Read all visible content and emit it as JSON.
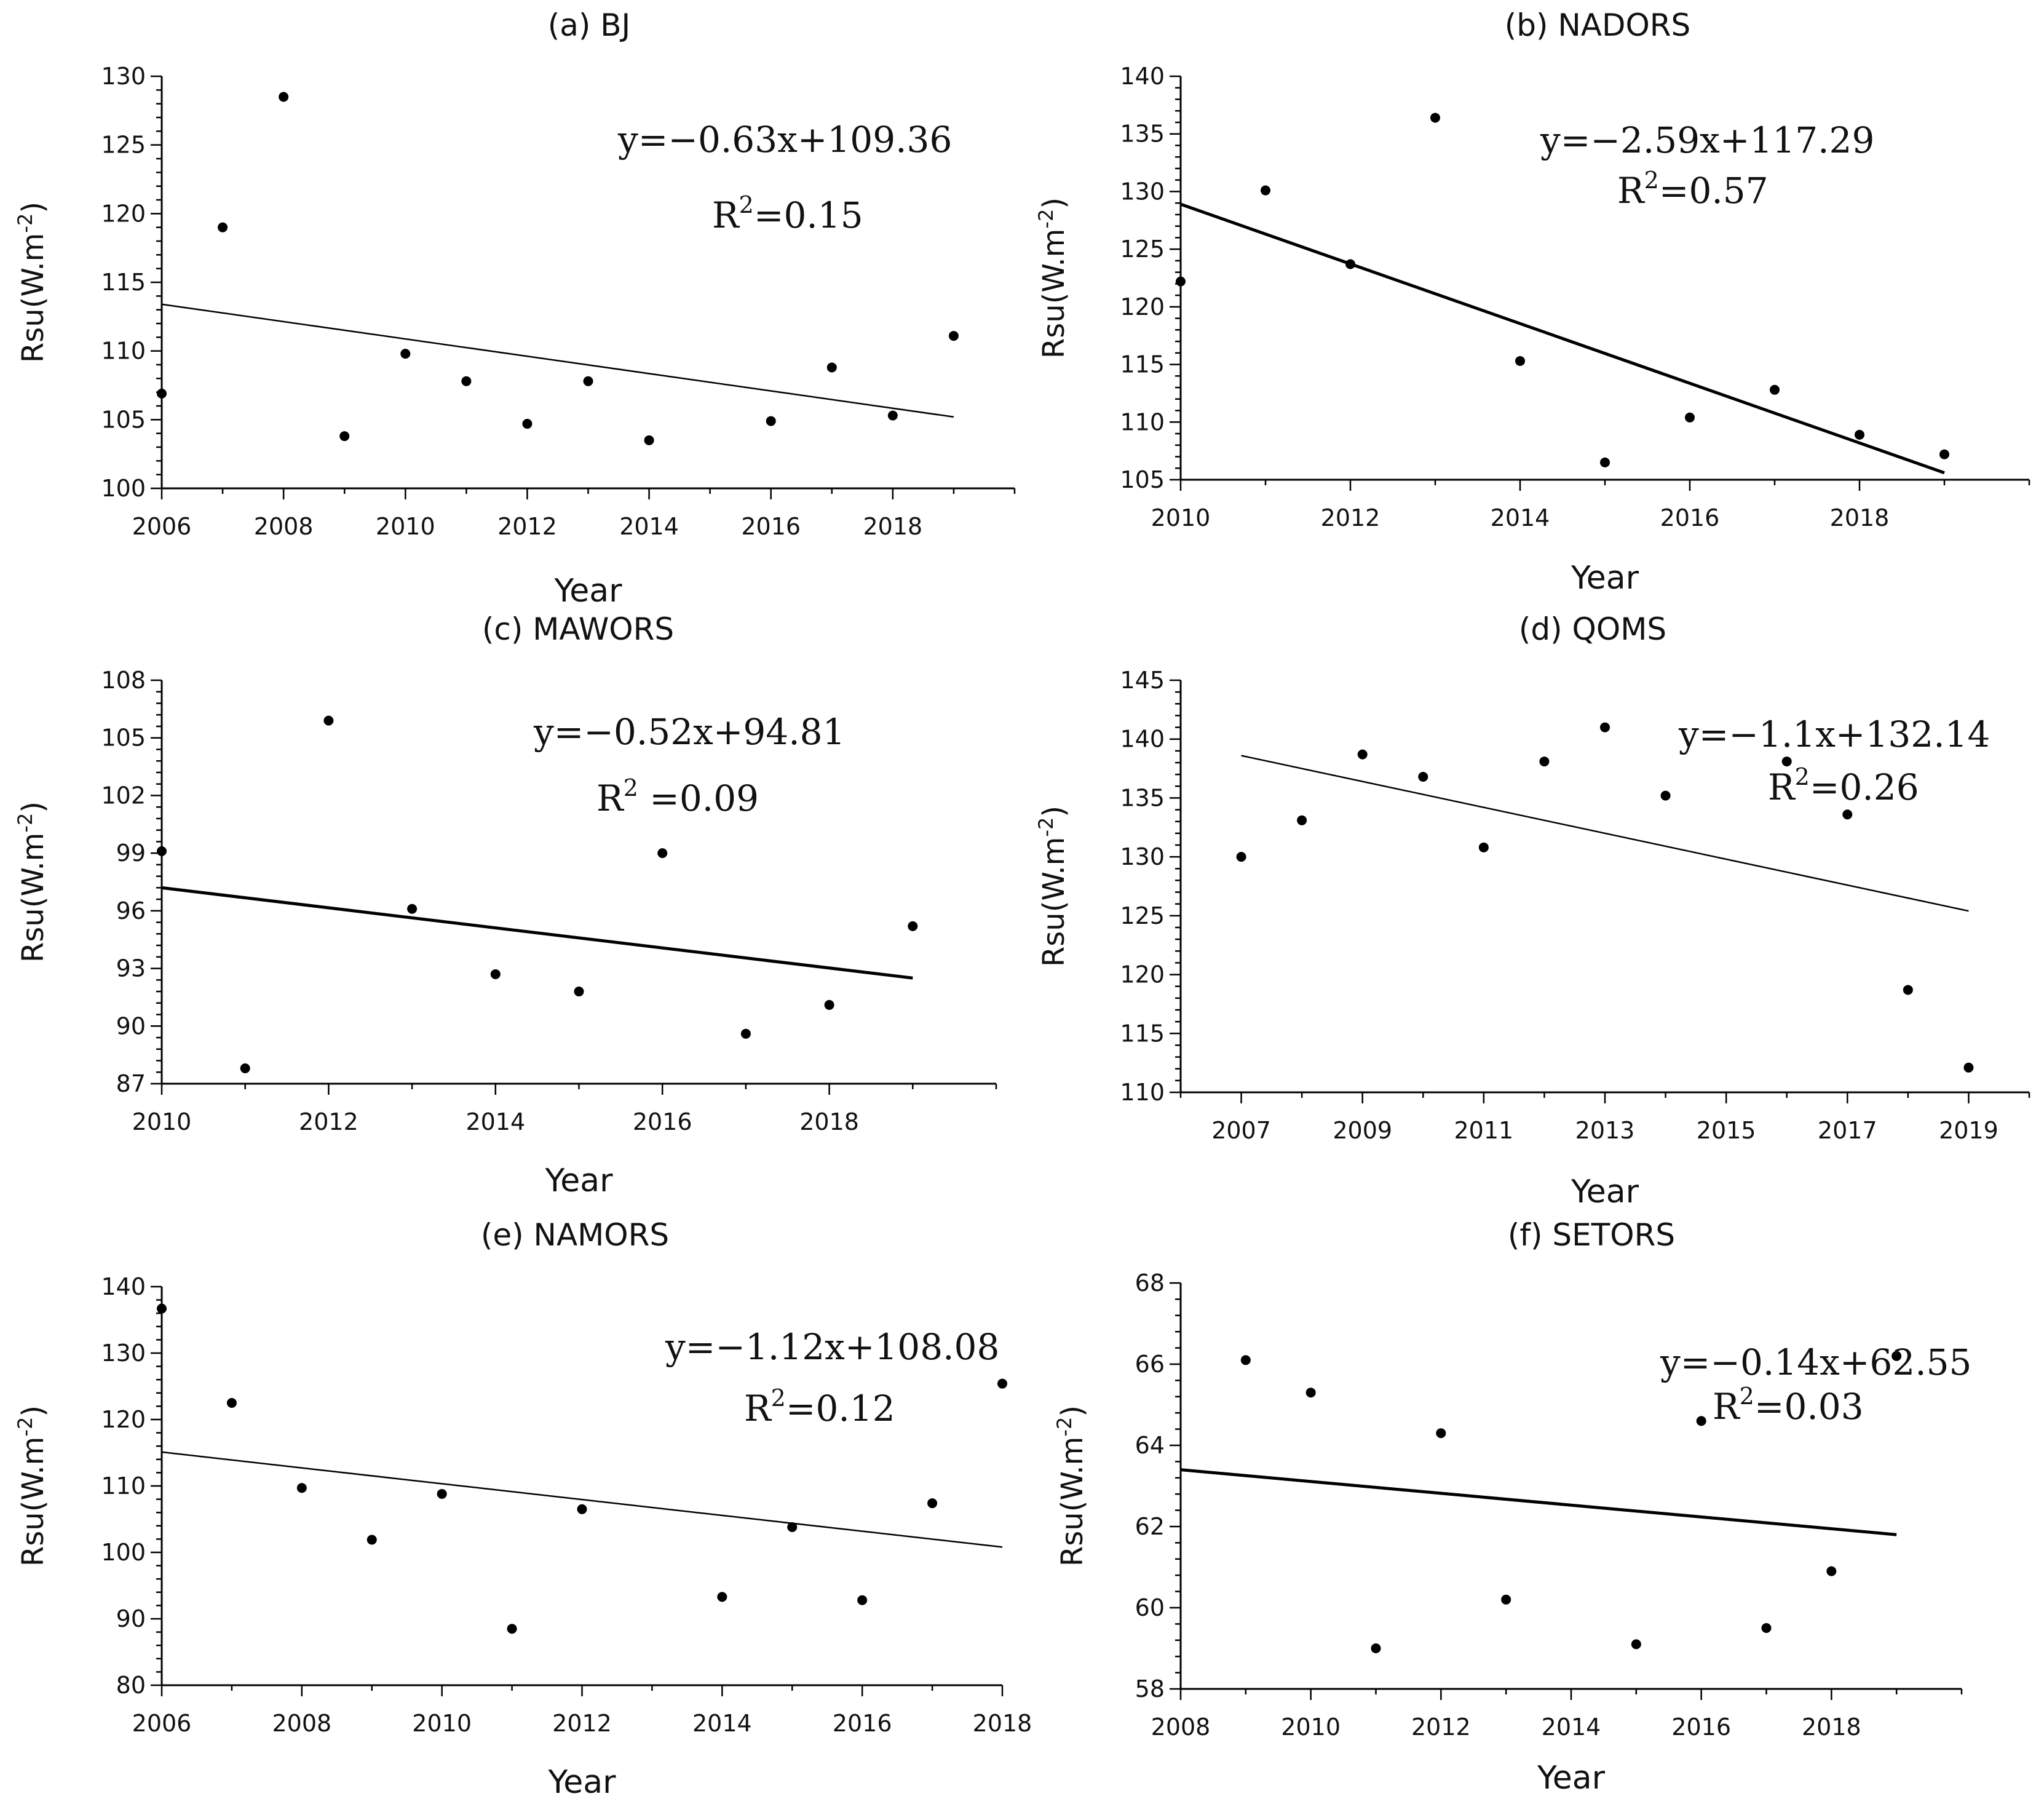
{
  "chart_data": [
    {
      "type": "scatter",
      "title": "(a) BJ",
      "xlabel": "Year",
      "ylabel": "Rsu(W.m",
      "ylabel_sup": "-2",
      "ylabel_close": ")",
      "xlim": [
        2006,
        2020
      ],
      "ylim": [
        100,
        130
      ],
      "xticks": [
        2006,
        2008,
        2010,
        2012,
        2014,
        2016,
        2018
      ],
      "yticks": [
        100,
        105,
        110,
        115,
        120,
        125,
        130
      ],
      "x": [
        2006,
        2007,
        2008,
        2009,
        2010,
        2011,
        2012,
        2013,
        2014,
        2016,
        2017,
        2018,
        2019
      ],
      "y": [
        106.9,
        119,
        128.5,
        103.8,
        109.8,
        107.8,
        104.7,
        107.8,
        103.5,
        104.9,
        108.8,
        105.3,
        111.1
      ],
      "trend": {
        "x": [
          2006,
          2019
        ],
        "y": [
          113.4,
          105.2
        ]
      },
      "equation": "y=−0.63x+109.36",
      "r2_base": "R",
      "r2_sup": "2",
      "r2_value": "=0.15"
    },
    {
      "type": "scatter",
      "title": "(b) NADORS",
      "xlabel": "Year",
      "ylabel": "Rsu(W.m",
      "ylabel_sup": "-2",
      "ylabel_close": ")",
      "xlim": [
        2010,
        2020
      ],
      "ylim": [
        105,
        140
      ],
      "xticks": [
        2010,
        2012,
        2014,
        2016,
        2018
      ],
      "yticks": [
        105,
        110,
        115,
        120,
        125,
        130,
        135,
        140
      ],
      "x": [
        2010,
        2011,
        2012,
        2013,
        2014,
        2015,
        2016,
        2017,
        2018,
        2019
      ],
      "y": [
        122.2,
        130.1,
        123.7,
        136.4,
        115.3,
        106.5,
        110.4,
        112.8,
        108.9,
        107.2
      ],
      "trend": {
        "x": [
          2010,
          2019
        ],
        "y": [
          128.9,
          105.6
        ]
      },
      "equation": "y=−2.59x+117.29",
      "r2_base": "R",
      "r2_sup": "2",
      "r2_value": "=0.57"
    },
    {
      "type": "scatter",
      "title": "(c) MAWORS",
      "xlabel": "Year",
      "ylabel": "Rsu(W.m",
      "ylabel_sup": "-2",
      "ylabel_close": ")",
      "xlim": [
        2010,
        2020
      ],
      "ylim": [
        87,
        108
      ],
      "xticks": [
        2010,
        2012,
        2014,
        2016,
        2018
      ],
      "yticks": [
        87,
        90,
        93,
        96,
        99,
        102,
        105,
        108
      ],
      "x": [
        2010,
        2011,
        2012,
        2013,
        2014,
        2015,
        2016,
        2017,
        2018,
        2019
      ],
      "y": [
        99.1,
        87.8,
        105.9,
        96.1,
        92.7,
        91.8,
        99,
        89.6,
        91.1,
        95.2
      ],
      "trend": {
        "x": [
          2010,
          2019
        ],
        "y": [
          97.2,
          92.5
        ]
      },
      "equation": "y=−0.52x+94.81",
      "r2_base": "R",
      "r2_sup": "2",
      "r2_value": " =0.09"
    },
    {
      "type": "scatter",
      "title": "(d) QOMS",
      "xlabel": "Year",
      "ylabel": "Rsu(W.m",
      "ylabel_sup": "-2",
      "ylabel_close": ")",
      "xlim": [
        2006,
        2020
      ],
      "ylim": [
        110,
        145
      ],
      "xticks": [
        2007,
        2009,
        2011,
        2013,
        2015,
        2017,
        2019
      ],
      "yticks": [
        110,
        115,
        120,
        125,
        130,
        135,
        140,
        145
      ],
      "x": [
        2007,
        2008,
        2009,
        2010,
        2011,
        2012,
        2013,
        2014,
        2016,
        2017,
        2018,
        2019
      ],
      "y": [
        130,
        133.1,
        138.7,
        136.8,
        130.8,
        138.1,
        141,
        135.2,
        138.1,
        133.6,
        118.7,
        112.1
      ],
      "trend": {
        "x": [
          2007,
          2019
        ],
        "y": [
          138.6,
          125.4
        ]
      },
      "equation": "y=−1.1x+132.14",
      "r2_base": "R",
      "r2_sup": "2",
      "r2_value": "=0.26"
    },
    {
      "type": "scatter",
      "title": "(e) NAMORS",
      "xlabel": "Year",
      "ylabel": "Rsu(W.m",
      "ylabel_sup": "-2",
      "ylabel_close": ")",
      "xlim": [
        2006,
        2018
      ],
      "ylim": [
        80,
        140
      ],
      "xticks": [
        2006,
        2008,
        2010,
        2012,
        2014,
        2016,
        2018
      ],
      "yticks": [
        80,
        90,
        100,
        110,
        120,
        130,
        140
      ],
      "x": [
        2006,
        2007,
        2008,
        2009,
        2010,
        2011,
        2012,
        2014,
        2015,
        2016,
        2017,
        2018
      ],
      "y": [
        136.7,
        122.5,
        109.7,
        101.9,
        108.8,
        88.5,
        106.5,
        93.3,
        103.8,
        92.8,
        107.4,
        125.4
      ],
      "trend": {
        "x": [
          2006,
          2018
        ],
        "y": [
          115.1,
          100.8
        ]
      },
      "equation": "y=−1.12x+108.08",
      "r2_base": "R",
      "r2_sup": "2",
      "r2_value": "=0.12"
    },
    {
      "type": "scatter",
      "title": "(f) SETORS",
      "xlabel": "Year",
      "ylabel": "Rsu(W.m",
      "ylabel_sup": "-2",
      "ylabel_close": ")",
      "xlim": [
        2008,
        2020
      ],
      "ylim": [
        58,
        68
      ],
      "xticks": [
        2008,
        2010,
        2012,
        2014,
        2016,
        2018
      ],
      "yticks": [
        58,
        60,
        62,
        64,
        66,
        68
      ],
      "x": [
        2009,
        2010,
        2011,
        2012,
        2013,
        2015,
        2016,
        2017,
        2018,
        2019
      ],
      "y": [
        66.1,
        65.3,
        59,
        64.3,
        60.2,
        59.1,
        64.6,
        59.5,
        60.9,
        66.2
      ],
      "trend": {
        "x": [
          2008,
          2019
        ],
        "y": [
          63.4,
          61.8
        ]
      },
      "equation": "y=−0.14x+62.55",
      "r2_base": "R",
      "r2_sup": "2",
      "r2_value": "=0.03"
    }
  ]
}
